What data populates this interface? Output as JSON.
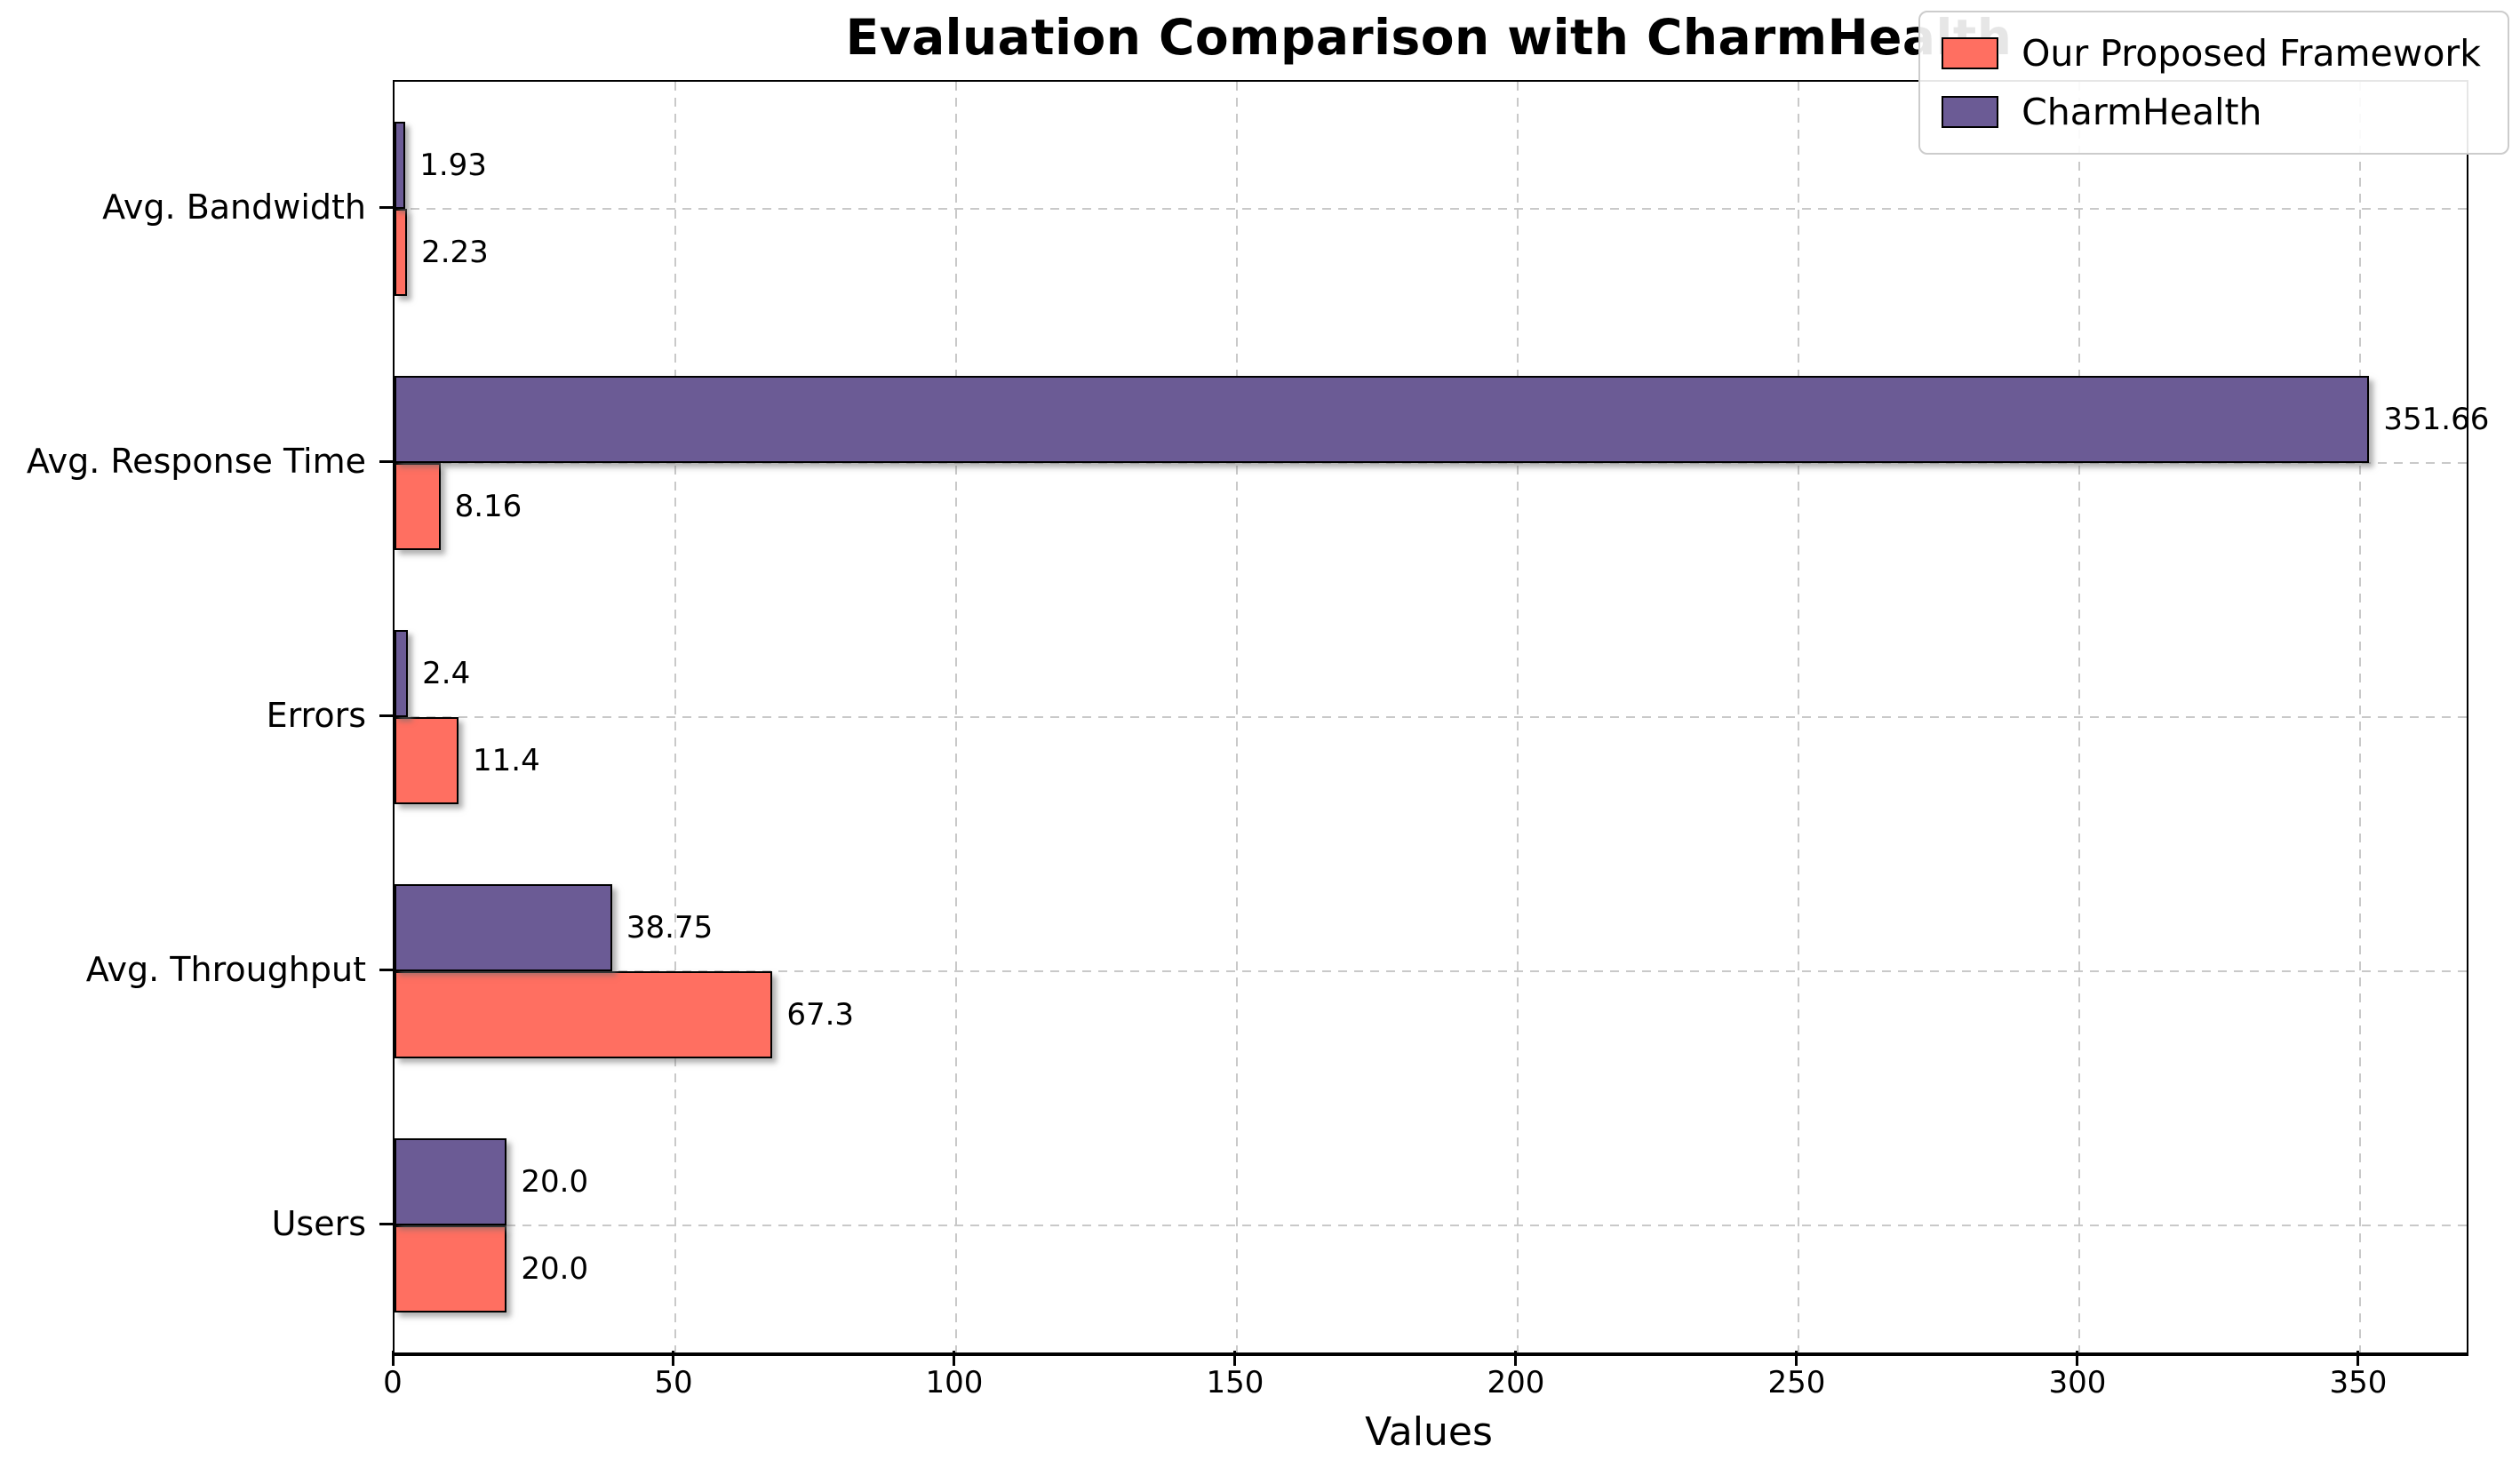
{
  "figure": {
    "background": "#ffffff"
  },
  "chart_data": {
    "type": "bar",
    "orientation": "horizontal",
    "title": "Evaluation Comparison with CharmHealth",
    "xlabel": "Values",
    "ylabel": "",
    "categories": [
      "Avg. Bandwidth",
      "Avg. Response Time",
      "Errors",
      "Avg. Throughput",
      "Users"
    ],
    "series": [
      {
        "name": "Our Proposed Framework",
        "color": "#FF6F61",
        "pair_position": "below",
        "values": [
          2.23,
          8.16,
          11.4,
          67.3,
          20.0
        ],
        "value_labels": [
          "2.23",
          "8.16",
          "11.4",
          "67.3",
          "20.0"
        ]
      },
      {
        "name": "CharmHealth",
        "color": "#6B5B95",
        "pair_position": "above",
        "values": [
          1.93,
          351.66,
          2.4,
          38.75,
          20.0
        ],
        "value_labels": [
          "1.93",
          "351.66",
          "2.4",
          "38.75",
          "20.0"
        ]
      }
    ],
    "x_ticks": [
      "0",
      "50",
      "100",
      "150",
      "200",
      "250",
      "300",
      "350"
    ],
    "x_tick_values": [
      0,
      50,
      100,
      150,
      200,
      250,
      300,
      350
    ],
    "xlim": [
      0,
      369
    ],
    "grid": true,
    "grid_style": "dashed",
    "grid_color": "#c9c9c9",
    "bar_edge_color": "#000000",
    "legend_position": "upper right"
  }
}
